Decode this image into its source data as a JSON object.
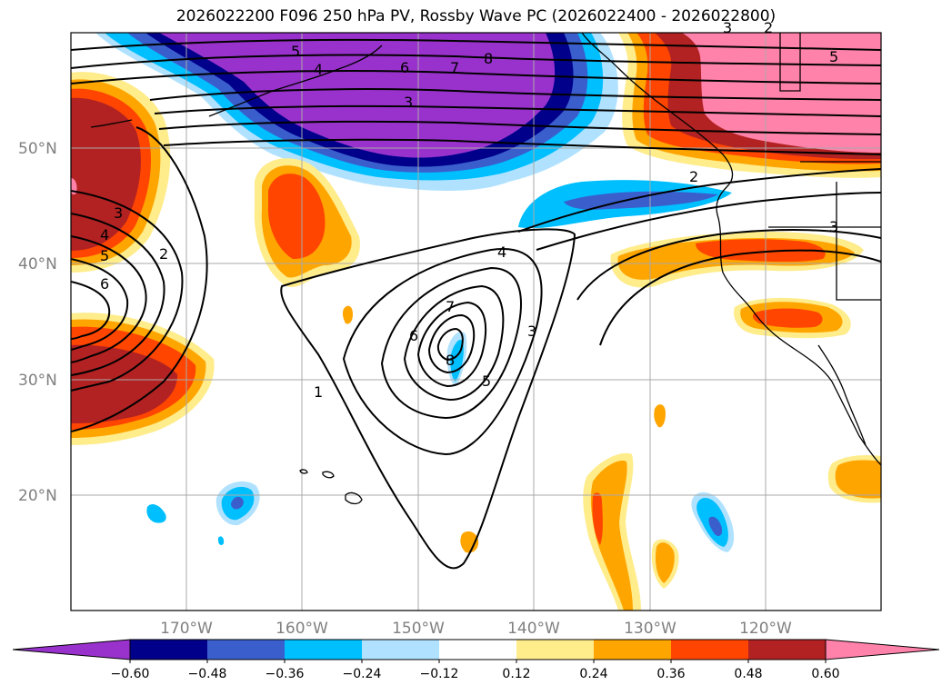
{
  "title": "2026022200 F096 250 hPa PV, Rossby Wave PC (2026022400 - 2026022800)",
  "lat_labels": [
    "50°N",
    "40°N",
    "30°N",
    "20°N"
  ],
  "lon_labels": [
    "170°W",
    "160°W",
    "150°W",
    "140°W",
    "130°W",
    "120°W"
  ],
  "contour_labels": [
    "5",
    "6",
    "7",
    "8",
    "4",
    "3",
    "3",
    "2",
    "3",
    "4",
    "5",
    "6",
    "2",
    "1",
    "4",
    "7",
    "6",
    "8",
    "5",
    "3",
    "2",
    "3",
    "5"
  ],
  "colorbar": {
    "ticks": [
      "−0.60",
      "−0.48",
      "−0.36",
      "−0.24",
      "−0.12",
      "0.12",
      "0.24",
      "0.36",
      "0.48",
      "0.60"
    ],
    "colors": [
      "#9932cc",
      "#00008b",
      "#3a5fcd",
      "#00bfff",
      "#b0e2ff",
      "#ffffff",
      "#ffec8b",
      "#ffa500",
      "#ff4500",
      "#b22222",
      "#ff82ab"
    ]
  }
}
